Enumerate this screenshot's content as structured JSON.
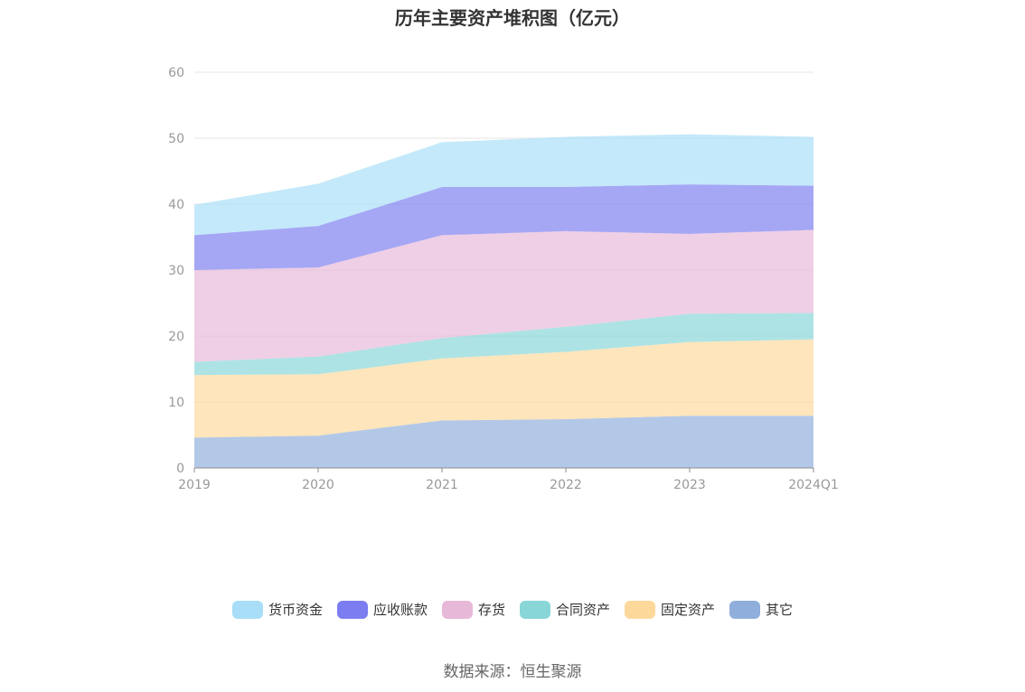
{
  "title": "历年主要资产堆积图（亿元）",
  "source": "数据来源：恒生聚源",
  "chart_data": {
    "type": "area",
    "stacked": true,
    "x": [
      "2019",
      "2020",
      "2021",
      "2022",
      "2023",
      "2024Q1"
    ],
    "ylim": [
      0,
      60
    ],
    "yticks": [
      0,
      10,
      20,
      30,
      40,
      50,
      60
    ],
    "grid": true,
    "legend_position": "bottom",
    "series": [
      {
        "name": "其它",
        "color": "#8faedc",
        "values": [
          4.6,
          4.9,
          7.2,
          7.4,
          7.9,
          7.9
        ]
      },
      {
        "name": "固定资产",
        "color": "#fdd89b",
        "values": [
          9.5,
          9.3,
          9.4,
          10.2,
          11.2,
          11.6
        ]
      },
      {
        "name": "合同资产",
        "color": "#88d6d8",
        "values": [
          2.0,
          2.7,
          3.1,
          3.8,
          4.3,
          4.0
        ]
      },
      {
        "name": "存货",
        "color": "#e8b8d8",
        "values": [
          13.9,
          13.5,
          15.6,
          14.5,
          12.1,
          12.6
        ]
      },
      {
        "name": "应收账款",
        "color": "#7b7df0",
        "values": [
          5.3,
          6.3,
          7.3,
          6.7,
          7.5,
          6.7
        ]
      },
      {
        "name": "货币资金",
        "color": "#a8def7",
        "values": [
          4.6,
          6.4,
          6.8,
          7.6,
          7.6,
          7.4
        ]
      }
    ]
  },
  "legend_order": [
    5,
    4,
    3,
    2,
    1,
    0
  ]
}
